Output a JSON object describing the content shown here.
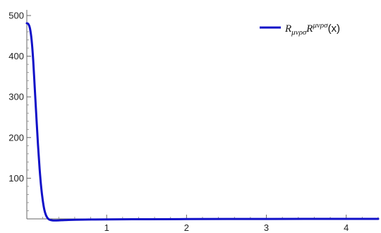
{
  "chart_data": {
    "type": "line",
    "title": "",
    "xlabel": "",
    "ylabel": "",
    "xlim": [
      0,
      4.4
    ],
    "ylim": [
      0,
      500
    ],
    "x_ticks": [
      {
        "value": 1,
        "label": "1"
      },
      {
        "value": 2,
        "label": "2"
      },
      {
        "value": 3,
        "label": "3"
      },
      {
        "value": 4,
        "label": "4"
      }
    ],
    "y_ticks": [
      {
        "value": 100,
        "label": "100"
      },
      {
        "value": 200,
        "label": "200"
      },
      {
        "value": 300,
        "label": "300"
      },
      {
        "value": 400,
        "label": "400"
      },
      {
        "value": 500,
        "label": "500"
      }
    ],
    "grid": false,
    "legend_position": "top-right",
    "legend": {
      "base1": "R",
      "sub": "μνρσ",
      "base2": "R",
      "sup": "μνρσ",
      "arg": "(x)"
    },
    "series": [
      {
        "color": "#1010c8",
        "x": [
          0,
          0.02,
          0.04,
          0.06,
          0.08,
          0.1,
          0.12,
          0.14,
          0.16,
          0.18,
          0.2,
          0.22,
          0.24,
          0.26,
          0.28,
          0.3,
          0.32,
          0.35,
          0.4,
          0.45,
          0.5,
          0.6,
          0.8,
          1.0,
          1.5,
          2.0,
          2.5,
          3.0,
          3.5,
          4.0,
          4.4
        ],
        "y": [
          481,
          479,
          468,
          440,
          390,
          320,
          250,
          182,
          124,
          78,
          45,
          22,
          9,
          2,
          -1.5,
          -3,
          -3.6,
          -3.8,
          -3.6,
          -3.2,
          -2.8,
          -2.2,
          -1.6,
          -1.2,
          -0.8,
          -0.5,
          -0.3,
          -0.2,
          -0.1,
          -0.05,
          0
        ]
      }
    ]
  }
}
